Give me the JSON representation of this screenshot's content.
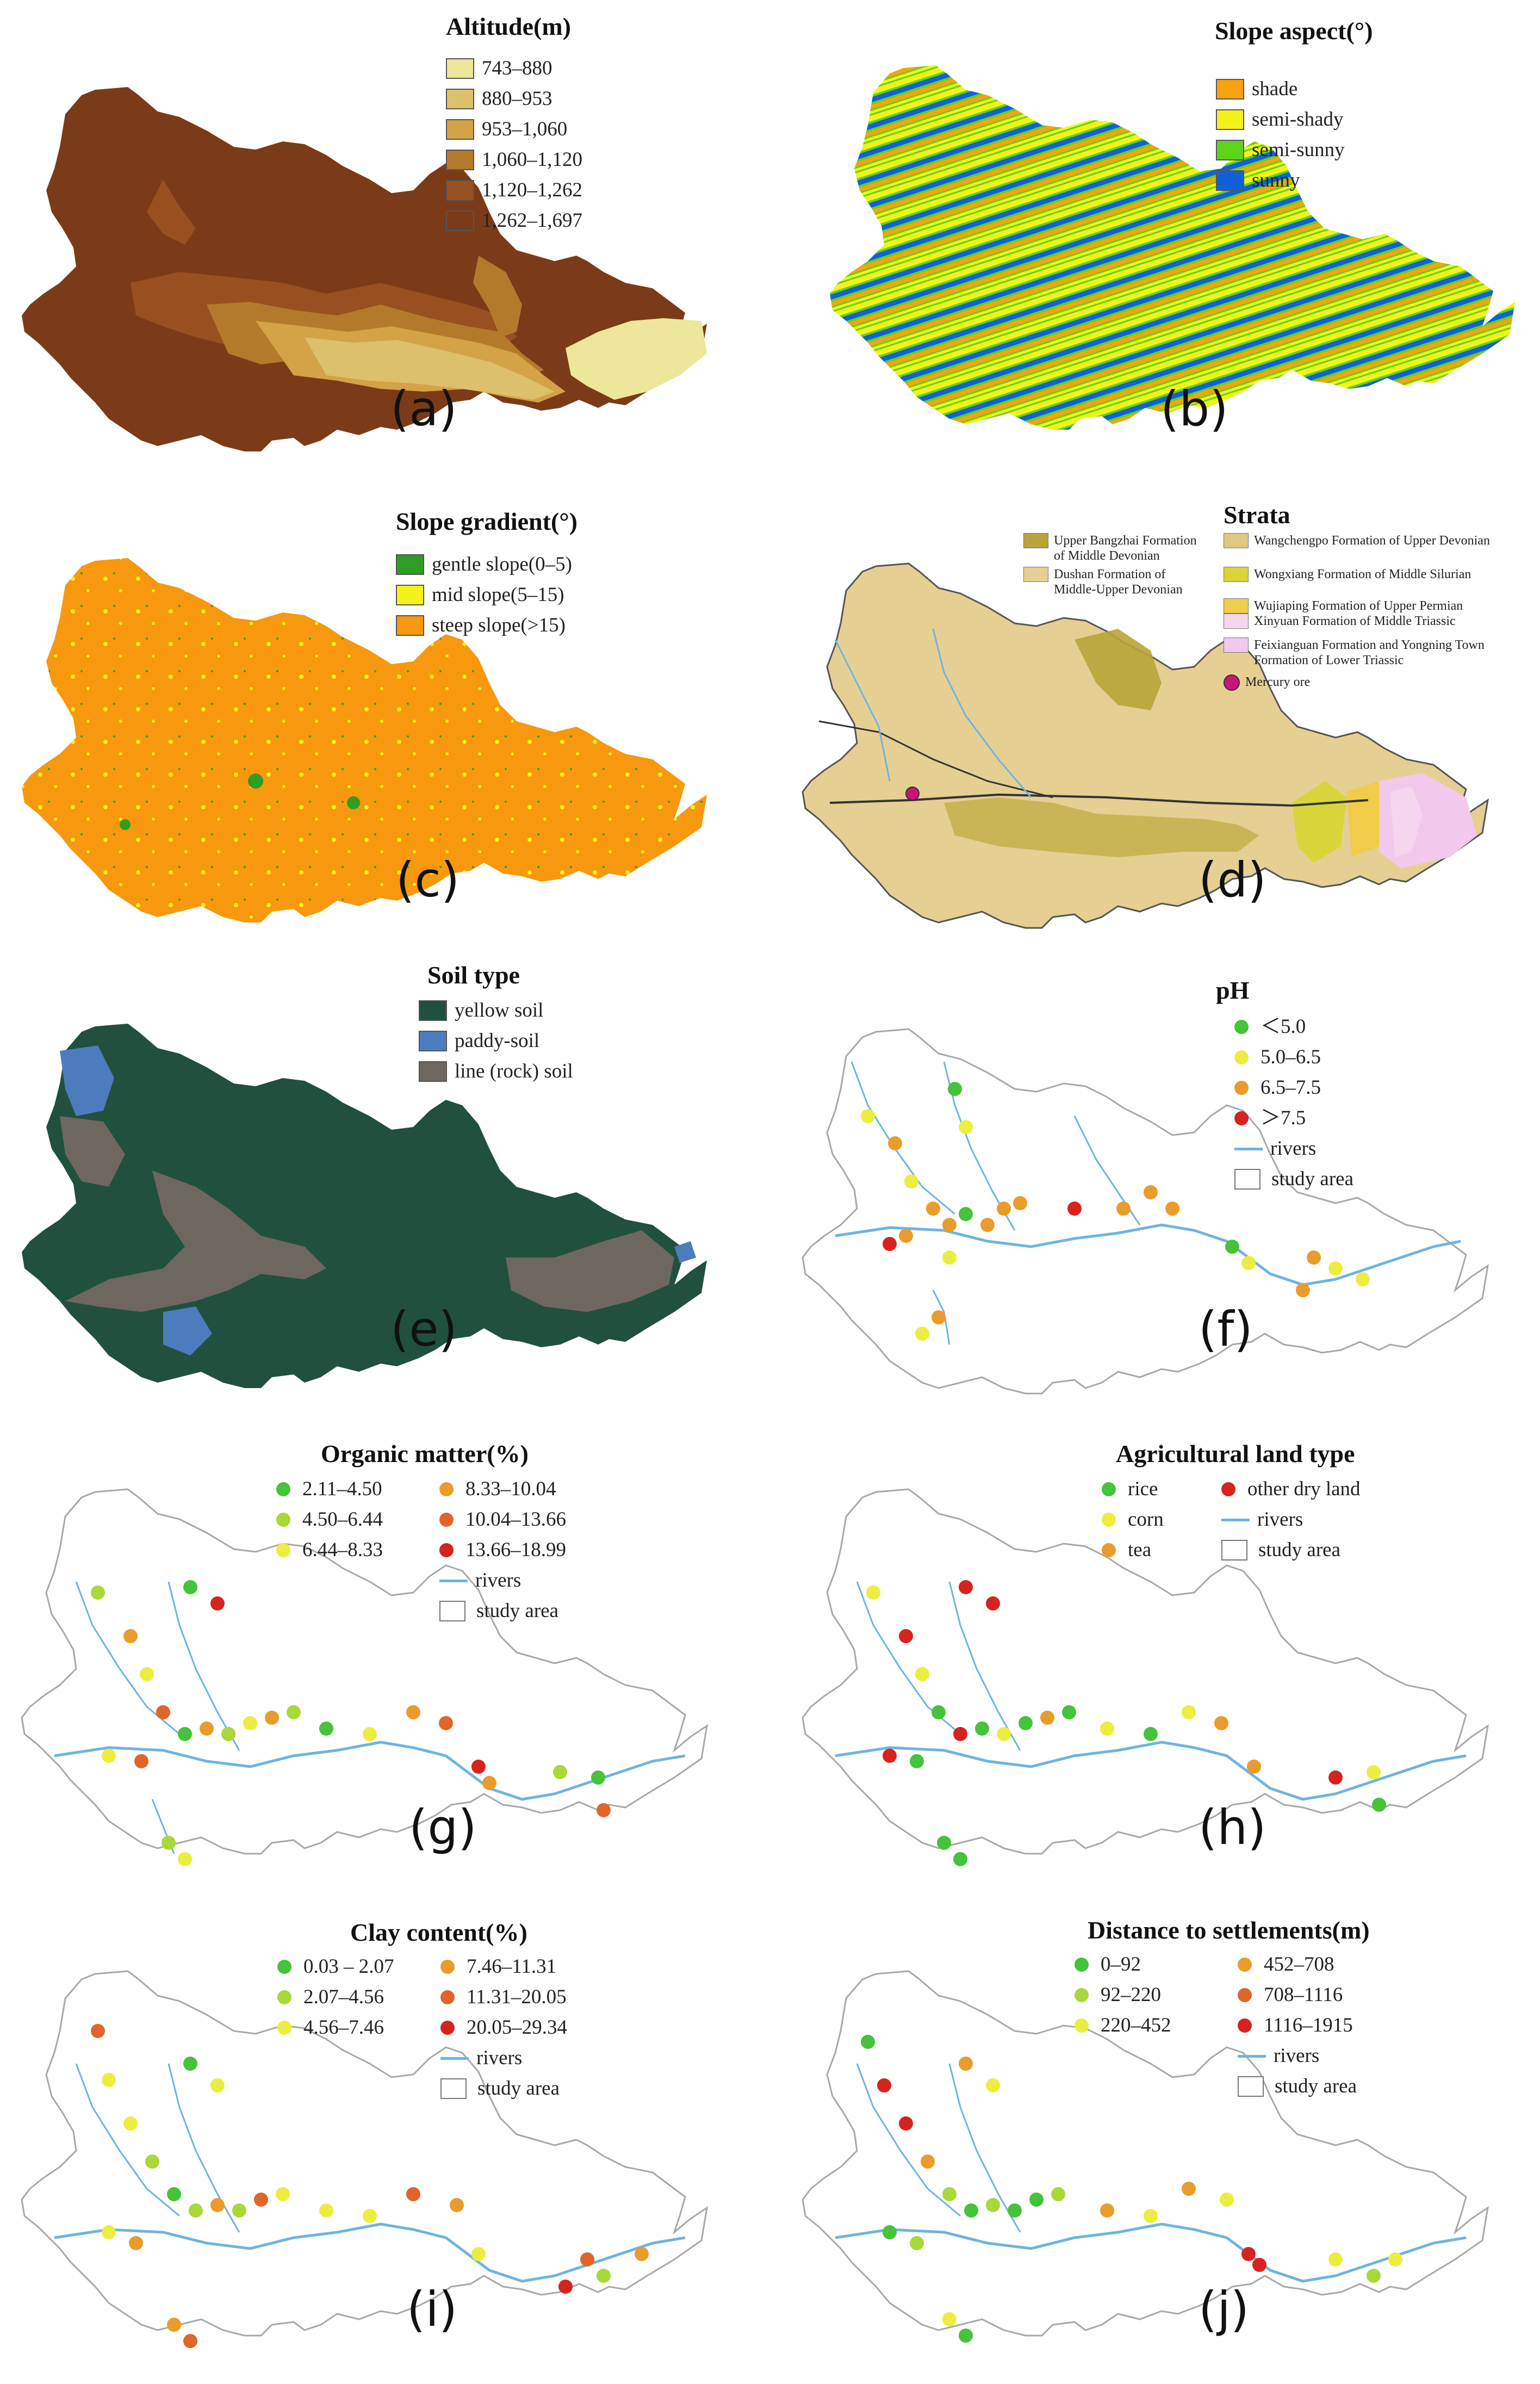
{
  "panels": {
    "a": {
      "label": "(a)",
      "title": "Altitude(m)",
      "legend": [
        {
          "text": "743–880",
          "color": "#ece79a"
        },
        {
          "text": "880–953",
          "color": "#dcc06b"
        },
        {
          "text": "953–1,060",
          "color": "#d4a247"
        },
        {
          "text": "1,060–1,120",
          "color": "#b47a2c"
        },
        {
          "text": "1,120–1,262",
          "color": "#985021"
        },
        {
          "text": "1,262–1,697",
          "color": "#7b3b18"
        }
      ]
    },
    "b": {
      "label": "(b)",
      "title": "Slope aspect(°)",
      "legend": [
        {
          "text": "shade",
          "color": "#f7a20e"
        },
        {
          "text": "semi-shady",
          "color": "#f3f31a"
        },
        {
          "text": "semi-sunny",
          "color": "#5ed31a"
        },
        {
          "text": "sunny",
          "color": "#1160d8"
        }
      ]
    },
    "c": {
      "label": "(c)",
      "title": "Slope gradient(°)",
      "legend": [
        {
          "text": "gentle slope(0–5)",
          "color": "#2f9d22"
        },
        {
          "text": "mid slope(5–15)",
          "color": "#f3f31a"
        },
        {
          "text": "steep slope(>15)",
          "color": "#f7980e"
        }
      ]
    },
    "d": {
      "label": "(d)",
      "title": "Strata",
      "legend_left": [
        {
          "text": "Upper Bangzhai Formation of Middle Devonian",
          "color": "#b8a43a"
        },
        {
          "text": "Dushan Formation of Middle-Upper Devonian",
          "color": "#e6cf93"
        }
      ],
      "legend_right": [
        {
          "text": "Wangchengpo Formation of Upper Devonian",
          "color": "#ddc97f"
        },
        {
          "text": "Wongxiang Formation of Middle Silurian",
          "color": "#d9d43a"
        },
        {
          "text": "Wujiaping Formation of Upper Permian",
          "color": "#f0cc4a"
        },
        {
          "text": "Xinyuan Formation of Middle Triassic",
          "color": "#f6d6ee"
        },
        {
          "text": "Feixianguan Formation and Yongning Town Formation of Lower Triassic",
          "color": "#f2c8ec"
        }
      ],
      "mercury": {
        "text": "Mercury ore",
        "color": "#c8157a"
      }
    },
    "e": {
      "label": "(e)",
      "title": "Soil type",
      "legend": [
        {
          "text": "yellow soil",
          "color": "#21503f"
        },
        {
          "text": "paddy-soil",
          "color": "#4c7cbd"
        },
        {
          "text": "line (rock) soil",
          "color": "#6e6760"
        }
      ]
    },
    "f": {
      "label": "(f)",
      "title": "pH",
      "legend": [
        {
          "text": "＜5.0",
          "color": "#45c33a"
        },
        {
          "text": "5.0–6.5",
          "color": "#ecee3f"
        },
        {
          "text": "6.5–7.5",
          "color": "#e99c2c"
        },
        {
          "text": "＞7.5",
          "color": "#d6231f"
        }
      ],
      "rivers": "rivers",
      "study_area": "study area"
    },
    "g": {
      "label": "(g)",
      "title": "Organic matter(%)",
      "legend": [
        {
          "text": "2.11–4.50",
          "color": "#45c33a"
        },
        {
          "text": "4.50–6.44",
          "color": "#a8d83a"
        },
        {
          "text": "6.44–8.33",
          "color": "#ecee3f"
        },
        {
          "text": "8.33–10.04",
          "color": "#e99c2c"
        },
        {
          "text": "10.04–13.66",
          "color": "#e0652a"
        },
        {
          "text": "13.66–18.99",
          "color": "#d6231f"
        }
      ],
      "rivers": "rivers",
      "study_area": "study area"
    },
    "h": {
      "label": "(h)",
      "title": "Agricultural land type",
      "legend": [
        {
          "text": "rice",
          "color": "#45c33a"
        },
        {
          "text": "corn",
          "color": "#ecee3f"
        },
        {
          "text": "tea",
          "color": "#e99c2c"
        },
        {
          "text": "other dry land",
          "color": "#d6231f"
        }
      ],
      "rivers": "rivers",
      "study_area": "study area"
    },
    "i": {
      "label": "(i)",
      "title": "Clay content(%)",
      "legend": [
        {
          "text": "0.03 – 2.07",
          "color": "#45c33a"
        },
        {
          "text": "2.07–4.56",
          "color": "#a8d83a"
        },
        {
          "text": "4.56–7.46",
          "color": "#ecee3f"
        },
        {
          "text": "7.46–11.31",
          "color": "#e99c2c"
        },
        {
          "text": "11.31–20.05",
          "color": "#e0652a"
        },
        {
          "text": "20.05–29.34",
          "color": "#d6231f"
        }
      ],
      "rivers": "rivers",
      "study_area": "study area"
    },
    "j": {
      "label": "(j)",
      "title": "Distance to settlements(m)",
      "legend": [
        {
          "text": "0–92",
          "color": "#45c33a"
        },
        {
          "text": "92–220",
          "color": "#a8d83a"
        },
        {
          "text": "220–452",
          "color": "#ecee3f"
        },
        {
          "text": "452–708",
          "color": "#e99c2c"
        },
        {
          "text": "708–1116",
          "color": "#e0652a"
        },
        {
          "text": "1116–1915",
          "color": "#d6231f"
        }
      ],
      "rivers": "rivers",
      "study_area": "study area"
    }
  },
  "colors": {
    "river": "#6fb4de",
    "boundary": "#a8a8a8"
  }
}
